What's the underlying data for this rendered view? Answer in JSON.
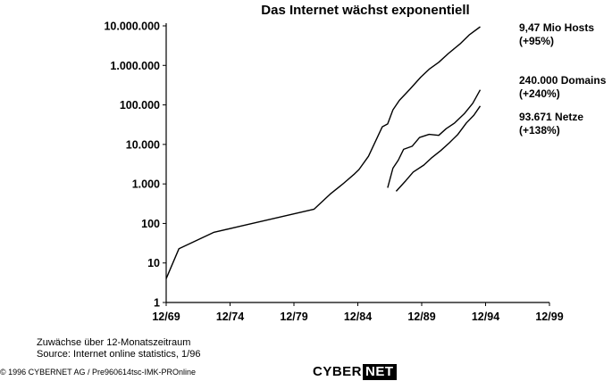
{
  "chart_data": {
    "type": "line",
    "title": "Das Internet wächst exponentiell",
    "xlabel": "",
    "ylabel": "",
    "y_scale": "log",
    "ylim": [
      1,
      10000000
    ],
    "xlim": [
      "1969-12",
      "1999-12"
    ],
    "x_ticks": [
      "12/69",
      "12/74",
      "12/79",
      "12/84",
      "12/89",
      "12/94",
      "12/99"
    ],
    "y_ticks": [
      "1",
      "10",
      "100",
      "1.000",
      "10.000",
      "100.000",
      "1.000.000",
      "10.000.000"
    ],
    "y_tick_values": [
      1,
      10,
      100,
      1000,
      10000,
      100000,
      1000000,
      10000000
    ],
    "grid": false,
    "series": [
      {
        "annotation": [
          "9,47 Mio Hosts",
          "(+95%)"
        ],
        "points": [
          [
            "1969-12",
            4
          ],
          [
            "1970-12",
            23
          ],
          [
            "1973-09",
            60
          ],
          [
            "1981-07",
            230
          ],
          [
            "1982-10",
            550
          ],
          [
            "1983-10",
            1000
          ],
          [
            "1984-09",
            1800
          ],
          [
            "1985-01",
            2300
          ],
          [
            "1985-10",
            5000
          ],
          [
            "1986-11",
            28000
          ],
          [
            "1987-04",
            33000
          ],
          [
            "1987-09",
            75000
          ],
          [
            "1988-03",
            130000
          ],
          [
            "1989-01",
            250000
          ],
          [
            "1989-11",
            500000
          ],
          [
            "1990-07",
            800000
          ],
          [
            "1991-04",
            1200000
          ],
          [
            "1992-01",
            2000000
          ],
          [
            "1992-12",
            3500000
          ],
          [
            "1993-09",
            6000000
          ],
          [
            "1994-07",
            9470000
          ]
        ]
      },
      {
        "annotation": [
          "240.000 Domains",
          "(+240%)"
        ],
        "points": [
          [
            "1987-04",
            800
          ],
          [
            "1987-09",
            2500
          ],
          [
            "1988-02",
            4000
          ],
          [
            "1988-07",
            7500
          ],
          [
            "1989-03",
            9000
          ],
          [
            "1989-10",
            15000
          ],
          [
            "1990-07",
            18000
          ],
          [
            "1991-04",
            17000
          ],
          [
            "1991-11",
            25000
          ],
          [
            "1992-07",
            35000
          ],
          [
            "1993-04",
            60000
          ],
          [
            "1993-12",
            110000
          ],
          [
            "1994-07",
            240000
          ]
        ]
      },
      {
        "annotation": [
          "93.671  Netze",
          "(+138%)"
        ],
        "points": [
          [
            "1987-12",
            650
          ],
          [
            "1988-09",
            1200
          ],
          [
            "1989-04",
            2000
          ],
          [
            "1990-02",
            3000
          ],
          [
            "1990-09",
            4500
          ],
          [
            "1991-06",
            7000
          ],
          [
            "1992-02",
            11000
          ],
          [
            "1992-10",
            18000
          ],
          [
            "1993-06",
            35000
          ],
          [
            "1994-01",
            55000
          ],
          [
            "1994-07",
            93671
          ]
        ]
      }
    ]
  },
  "notes": {
    "line1": "Zuwächse über 12-Monatszeitraum",
    "line2": "Source:  Internet online statistics, 1/96"
  },
  "footer": {
    "copyright": "© 1996 CYBERNET AG / Pre960614tsc-IMK-PROnline",
    "logo_left": "CYBER",
    "logo_right": "NET"
  }
}
